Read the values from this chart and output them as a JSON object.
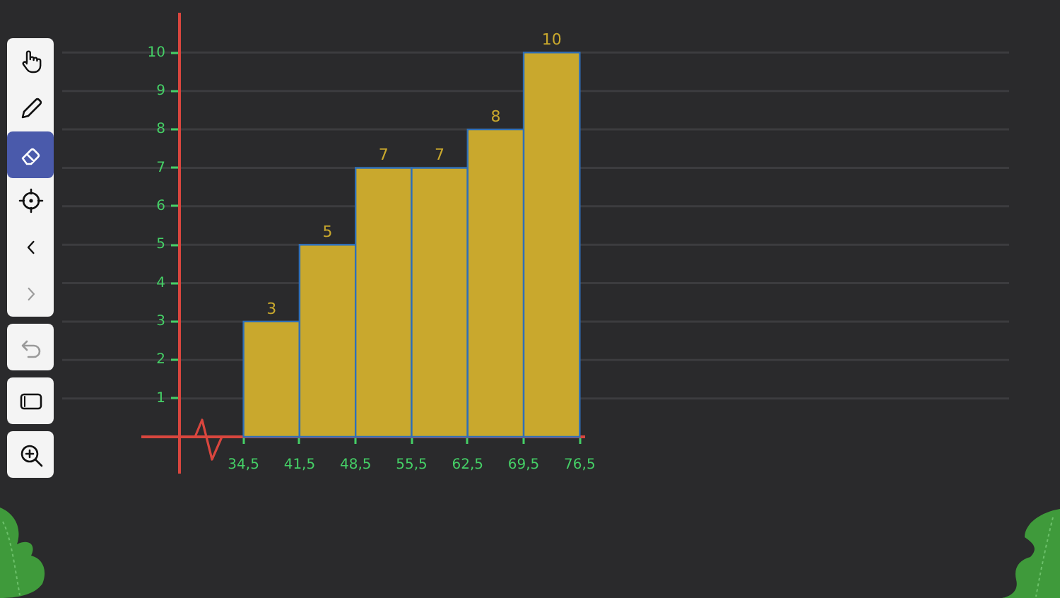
{
  "chart_data": {
    "type": "histogram",
    "bins": [
      34.5,
      41.5,
      48.5,
      55.5,
      62.5,
      69.5,
      76.5
    ],
    "values": [
      3,
      5,
      7,
      7,
      8,
      10
    ],
    "color": "#c9a82d",
    "xlim": [
      26.5,
      77
    ],
    "xticks": [
      {
        "value": 34.5,
        "label": "34,5"
      },
      {
        "value": 41.5,
        "label": "41,5"
      },
      {
        "value": 48.5,
        "label": "48,5"
      },
      {
        "value": 55.5,
        "label": "55,5"
      },
      {
        "value": 62.5,
        "label": "62,5"
      },
      {
        "value": 69.5,
        "label": "69,5"
      },
      {
        "value": 76.5,
        "label": "76,5"
      }
    ],
    "ylim": [
      0,
      11
    ],
    "yticks": [
      1,
      2,
      3,
      4,
      5,
      6,
      7,
      8,
      9,
      10
    ],
    "grid": "y",
    "data_labels": true
  }
}
